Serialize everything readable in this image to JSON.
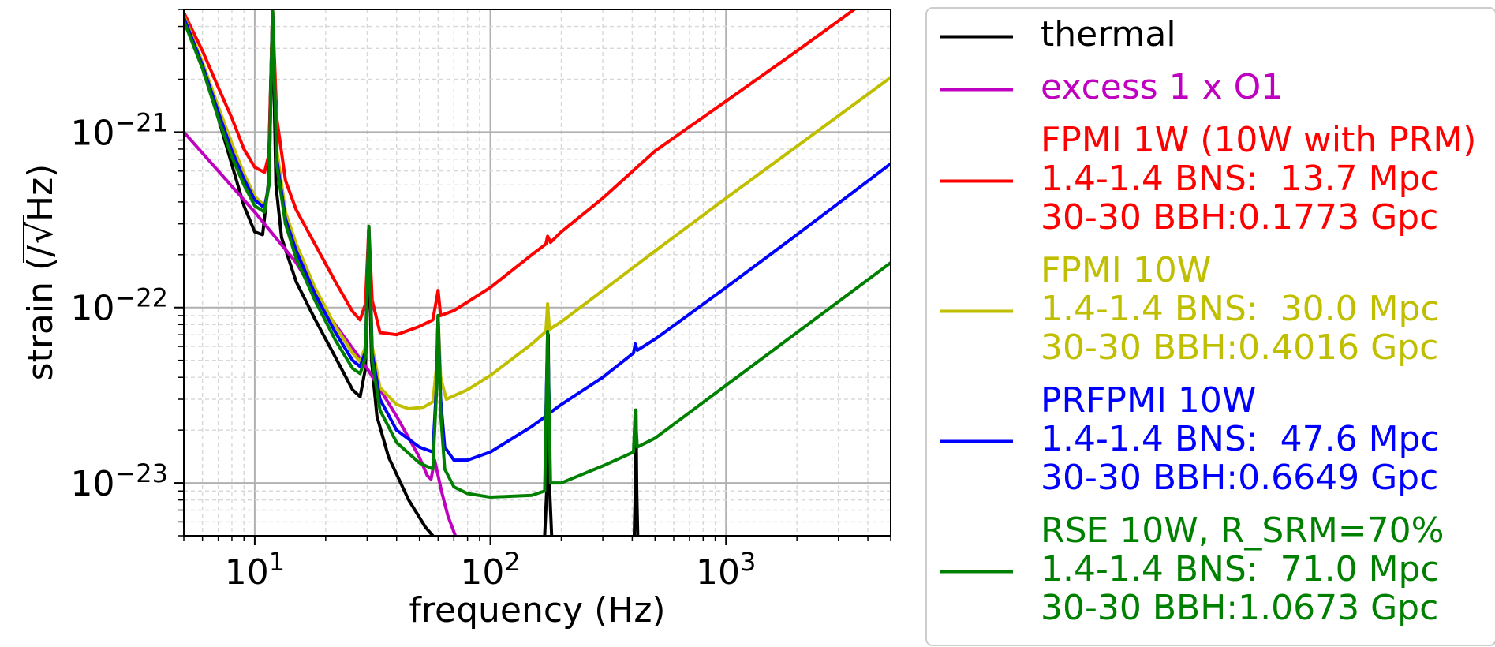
{
  "chart_data": {
    "type": "line",
    "xscale": "log",
    "yscale": "log",
    "xlim": [
      5,
      5000
    ],
    "ylim": [
      5e-24,
      5e-21
    ],
    "xlabel": "frequency (Hz)",
    "ylabel_prefix": "strain (/",
    "ylabel_root": "Hz",
    "ylabel_suffix": ")",
    "grid": "major and minor",
    "legend_position": "outside right",
    "xticks": [
      {
        "value": 10,
        "base": "10",
        "exp": "1"
      },
      {
        "value": 100,
        "base": "10",
        "exp": "2"
      },
      {
        "value": 1000,
        "base": "10",
        "exp": "3"
      }
    ],
    "yticks": [
      {
        "value": 1e-23,
        "base": "10",
        "exp": "−23"
      },
      {
        "value": 1e-22,
        "base": "10",
        "exp": "−22"
      },
      {
        "value": 1e-21,
        "base": "10",
        "exp": "−21"
      }
    ],
    "series": [
      {
        "legend": [
          "thermal"
        ],
        "color": "#000000",
        "points": [
          [
            5,
            4.8e-21
          ],
          [
            6,
            2.4e-21
          ],
          [
            7,
            1.2e-21
          ],
          [
            8,
            6.5e-22
          ],
          [
            9,
            3.8e-22
          ],
          [
            10,
            2.7e-22
          ],
          [
            10.8,
            2.6e-22
          ],
          [
            11.4,
            5e-22
          ],
          [
            11.9,
            5e-21
          ],
          [
            12.3,
            5e-22
          ],
          [
            13,
            2.5e-22
          ],
          [
            15,
            1.4e-22
          ],
          [
            18,
            8.6e-23
          ],
          [
            22,
            5.2e-23
          ],
          [
            26,
            3.4e-23
          ],
          [
            28,
            3.1e-23
          ],
          [
            29.5,
            4.5e-23
          ],
          [
            30.5,
            2.4e-22
          ],
          [
            31.3,
            5e-23
          ],
          [
            33,
            2.4e-23
          ],
          [
            37,
            1.4e-23
          ],
          [
            45,
            8e-24
          ],
          [
            53,
            5.6e-24
          ],
          [
            57,
            5e-24
          ]
        ],
        "extra_segments": [
          [
            [
              170,
              5e-24
            ],
            [
              174,
              1e-23
            ],
            [
              176,
              7e-23
            ],
            [
              178,
              1e-23
            ],
            [
              182,
              5e-24
            ]
          ],
          [
            [
              408,
              5e-24
            ],
            [
              412,
              9e-24
            ],
            [
              415,
              2.6e-23
            ],
            [
              418,
              9e-24
            ],
            [
              422,
              5e-24
            ]
          ]
        ]
      },
      {
        "legend": [
          "excess 1 x O1"
        ],
        "color": "#c000c0",
        "points": [
          [
            5,
            1e-21
          ],
          [
            7,
            6e-22
          ],
          [
            10,
            3.5e-22
          ],
          [
            15,
            1.8e-22
          ],
          [
            20,
            9.5e-23
          ],
          [
            30,
            4.5e-23
          ],
          [
            40,
            2.4e-23
          ],
          [
            50,
            1.4e-23
          ],
          [
            54,
            1.1e-23
          ],
          [
            56,
            1.05e-23
          ],
          [
            58,
            1.35e-23
          ],
          [
            62,
            9e-24
          ],
          [
            66,
            6.5e-24
          ],
          [
            71,
            5e-24
          ]
        ]
      },
      {
        "legend": [
          "FPMI 1W (10W with PRM)",
          "1.4-1.4 BNS:  13.7 Mpc",
          "30-30 BBH:0.1773 Gpc"
        ],
        "color": "#ff0000",
        "points": [
          [
            5,
            4.8e-21
          ],
          [
            6,
            2.9e-21
          ],
          [
            7,
            1.8e-21
          ],
          [
            8,
            1.2e-21
          ],
          [
            9,
            8e-22
          ],
          [
            10,
            6.3e-22
          ],
          [
            11,
            5.9e-22
          ],
          [
            11.5,
            7.5e-22
          ],
          [
            11.9,
            5e-21
          ],
          [
            12.4,
            1.2e-21
          ],
          [
            13.5,
            5.3e-22
          ],
          [
            15,
            3.6e-22
          ],
          [
            18,
            2.3e-22
          ],
          [
            22,
            1.4e-22
          ],
          [
            26,
            9.5e-23
          ],
          [
            28,
            8.5e-23
          ],
          [
            29.5,
            1.05e-22
          ],
          [
            30.5,
            2.9e-22
          ],
          [
            31.5,
            1.1e-22
          ],
          [
            34,
            7.2e-23
          ],
          [
            40,
            7e-23
          ],
          [
            50,
            7.8e-23
          ],
          [
            57,
            8.5e-23
          ],
          [
            59,
            1.1e-22
          ],
          [
            60,
            1.25e-22
          ],
          [
            61.5,
            9e-23
          ],
          [
            70,
            9.6e-23
          ],
          [
            100,
            1.3e-22
          ],
          [
            150,
            2e-22
          ],
          [
            172,
            2.3e-22
          ],
          [
            175,
            2.55e-22
          ],
          [
            180,
            2.35e-22
          ],
          [
            200,
            2.7e-22
          ],
          [
            300,
            4.2e-22
          ],
          [
            500,
            7.8e-22
          ],
          [
            1000,
            1.5e-21
          ],
          [
            2000,
            2.9e-21
          ],
          [
            3500,
            5e-21
          ]
        ]
      },
      {
        "legend": [
          "FPMI 10W",
          "1.4-1.4 BNS:  30.0 Mpc",
          "30-30 BBH:0.4016 Gpc"
        ],
        "color": "#bfbf00",
        "points": [
          [
            5,
            4.6e-21
          ],
          [
            6,
            2.5e-21
          ],
          [
            7,
            1.4e-21
          ],
          [
            8,
            8.6e-22
          ],
          [
            9,
            5.8e-22
          ],
          [
            10,
            4.3e-22
          ],
          [
            11,
            3.8e-22
          ],
          [
            11.5,
            5e-22
          ],
          [
            11.9,
            5e-21
          ],
          [
            12.4,
            8e-22
          ],
          [
            13.5,
            3.5e-22
          ],
          [
            15,
            2.3e-22
          ],
          [
            18,
            1.3e-22
          ],
          [
            22,
            7.8e-23
          ],
          [
            26,
            5.5e-23
          ],
          [
            28,
            4.9e-23
          ],
          [
            29.5,
            6e-23
          ],
          [
            30.5,
            2.9e-22
          ],
          [
            31.5,
            6e-23
          ],
          [
            34,
            3.5e-23
          ],
          [
            40,
            2.8e-23
          ],
          [
            45,
            2.65e-23
          ],
          [
            52,
            2.7e-23
          ],
          [
            57,
            2.9e-23
          ],
          [
            59,
            4.5e-23
          ],
          [
            60,
            9e-23
          ],
          [
            61.5,
            4e-23
          ],
          [
            65,
            3e-23
          ],
          [
            80,
            3.4e-23
          ],
          [
            100,
            4.1e-23
          ],
          [
            150,
            6.2e-23
          ],
          [
            172,
            7.3e-23
          ],
          [
            175,
            1.05e-22
          ],
          [
            178,
            7.5e-23
          ],
          [
            200,
            8.3e-23
          ],
          [
            300,
            1.25e-22
          ],
          [
            500,
            2.1e-22
          ],
          [
            1000,
            4.2e-22
          ],
          [
            2000,
            8.3e-22
          ],
          [
            5000,
            2.05e-21
          ]
        ]
      },
      {
        "legend": [
          "PRFPMI 10W",
          "1.4-1.4 BNS:  47.6 Mpc",
          "30-30 BBH:0.6649 Gpc"
        ],
        "color": "#0000ff",
        "points": [
          [
            5,
            4.5e-21
          ],
          [
            6,
            2.4e-21
          ],
          [
            7,
            1.3e-21
          ],
          [
            8,
            7.8e-22
          ],
          [
            9,
            5.4e-22
          ],
          [
            10,
            4.1e-22
          ],
          [
            11,
            3.7e-22
          ],
          [
            11.5,
            5e-22
          ],
          [
            11.9,
            5e-21
          ],
          [
            12.4,
            7e-22
          ],
          [
            13.5,
            3.2e-22
          ],
          [
            15,
            2.1e-22
          ],
          [
            18,
            1.2e-22
          ],
          [
            22,
            7.2e-23
          ],
          [
            26,
            5e-23
          ],
          [
            28,
            4.6e-23
          ],
          [
            29.5,
            5.6e-23
          ],
          [
            30.5,
            2.9e-22
          ],
          [
            31.5,
            5.5e-23
          ],
          [
            34,
            3e-23
          ],
          [
            40,
            2e-23
          ],
          [
            50,
            1.6e-23
          ],
          [
            57,
            1.5e-23
          ],
          [
            59,
            3.5e-23
          ],
          [
            60,
            9e-23
          ],
          [
            61.5,
            3e-23
          ],
          [
            64,
            1.6e-23
          ],
          [
            70,
            1.35e-23
          ],
          [
            80,
            1.35e-23
          ],
          [
            100,
            1.5e-23
          ],
          [
            150,
            2.1e-23
          ],
          [
            172,
            2.4e-23
          ],
          [
            175,
            7.3e-23
          ],
          [
            178,
            2.5e-23
          ],
          [
            200,
            2.8e-23
          ],
          [
            300,
            4e-23
          ],
          [
            405,
            5.5e-23
          ],
          [
            412,
            6.2e-23
          ],
          [
            420,
            5.7e-23
          ],
          [
            500,
            6.6e-23
          ],
          [
            1000,
            1.3e-22
          ],
          [
            2000,
            2.6e-22
          ],
          [
            5000,
            6.6e-22
          ]
        ]
      },
      {
        "legend": [
          "RSE 10W, R_SRM=70%",
          "1.4-1.4 BNS:  71.0 Mpc",
          "30-30 BBH:1.0673 Gpc"
        ],
        "color": "#008000",
        "points": [
          [
            5,
            4.3e-21
          ],
          [
            6,
            2.3e-21
          ],
          [
            7,
            1.2e-21
          ],
          [
            8,
            7.2e-22
          ],
          [
            9,
            5e-22
          ],
          [
            10,
            3.8e-22
          ],
          [
            11,
            3.5e-22
          ],
          [
            11.5,
            5e-22
          ],
          [
            11.9,
            5e-21
          ],
          [
            12.4,
            6.5e-22
          ],
          [
            13.5,
            3e-22
          ],
          [
            15,
            1.9e-22
          ],
          [
            18,
            1.1e-22
          ],
          [
            22,
            6.5e-23
          ],
          [
            26,
            4.5e-23
          ],
          [
            28,
            4.2e-23
          ],
          [
            29.5,
            5.2e-23
          ],
          [
            30.5,
            2.9e-22
          ],
          [
            31.5,
            5e-23
          ],
          [
            34,
            2.6e-23
          ],
          [
            40,
            1.7e-23
          ],
          [
            50,
            1.3e-23
          ],
          [
            57,
            1.2e-23
          ],
          [
            59,
            3.2e-23
          ],
          [
            60,
            9e-23
          ],
          [
            61.5,
            2.5e-23
          ],
          [
            64,
            1.2e-23
          ],
          [
            70,
            9.5e-24
          ],
          [
            80,
            8.7e-24
          ],
          [
            100,
            8.3e-24
          ],
          [
            150,
            8.5e-24
          ],
          [
            170,
            9e-24
          ],
          [
            175,
            7.3e-23
          ],
          [
            180,
            1e-23
          ],
          [
            200,
            1e-23
          ],
          [
            300,
            1.25e-23
          ],
          [
            405,
            1.5e-23
          ],
          [
            412,
            2.6e-23
          ],
          [
            420,
            1.6e-23
          ],
          [
            500,
            1.8e-23
          ],
          [
            1000,
            3.6e-23
          ],
          [
            2000,
            7.2e-23
          ],
          [
            5000,
            1.8e-22
          ]
        ]
      }
    ]
  }
}
